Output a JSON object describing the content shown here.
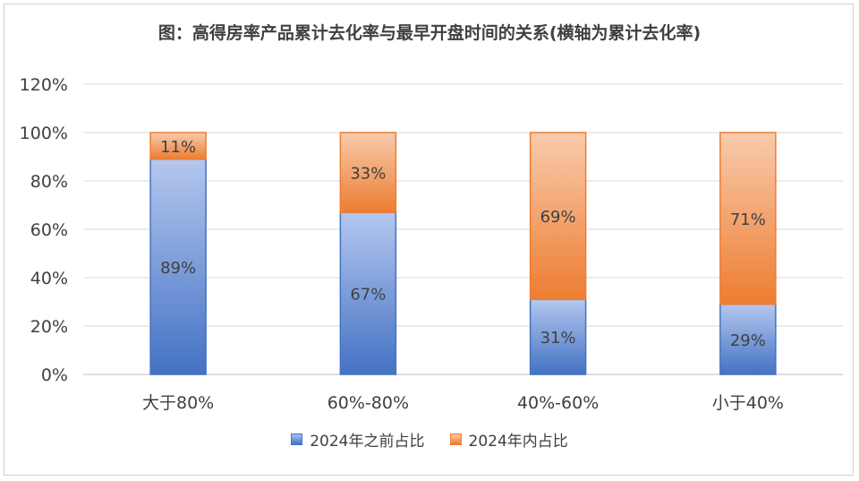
{
  "chart_data": {
    "type": "bar",
    "stacked": true,
    "title": "图：高得房率产品累计去化率与最早开盘时间的关系(横轴为累计去化率)",
    "categories": [
      "大于80%",
      "60%-80%",
      "40%-60%",
      "小于40%"
    ],
    "series": [
      {
        "name": "2024年之前占比",
        "values": [
          89,
          67,
          31,
          29
        ],
        "labels": [
          "89%",
          "67%",
          "31%",
          "29%"
        ],
        "color": "#4472c4"
      },
      {
        "name": "2024年内占比",
        "values": [
          11,
          33,
          69,
          71
        ],
        "labels": [
          "11%",
          "33%",
          "69%",
          "71%"
        ],
        "color": "#ed7d31"
      }
    ],
    "ylim": [
      0,
      120
    ],
    "yticks": [
      "0%",
      "20%",
      "40%",
      "60%",
      "80%",
      "100%",
      "120%"
    ],
    "grid": true,
    "legend": "bottom"
  }
}
